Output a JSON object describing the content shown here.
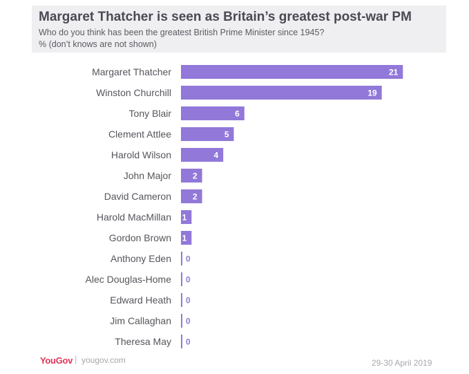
{
  "header": {
    "title": "Margaret Thatcher is seen as Britain’s greatest post-war PM",
    "subtitle": "Who do you think has been the greatest British Prime Minister since 1945?",
    "note": "% (don’t knows are not shown)"
  },
  "chart_data": {
    "type": "bar",
    "orientation": "horizontal",
    "categories": [
      "Margaret Thatcher",
      "Winston Churchill",
      "Tony Blair",
      "Clement Attlee",
      "Harold Wilson",
      "John Major",
      "David Cameron",
      "Harold MacMillan",
      "Gordon Brown",
      "Anthony Eden",
      "Alec Douglas-Home",
      "Edward Heath",
      "Jim Callaghan",
      "Theresa May"
    ],
    "values": [
      21,
      19,
      6,
      5,
      4,
      2,
      2,
      1,
      1,
      0,
      0,
      0,
      0,
      0
    ],
    "unit": "%",
    "bar_color": "#9178d9",
    "grid": false,
    "legend": "none"
  },
  "footer": {
    "brand": "YouGov",
    "separator": "|",
    "url": "yougov.com",
    "date": "29-30 April 2019"
  }
}
